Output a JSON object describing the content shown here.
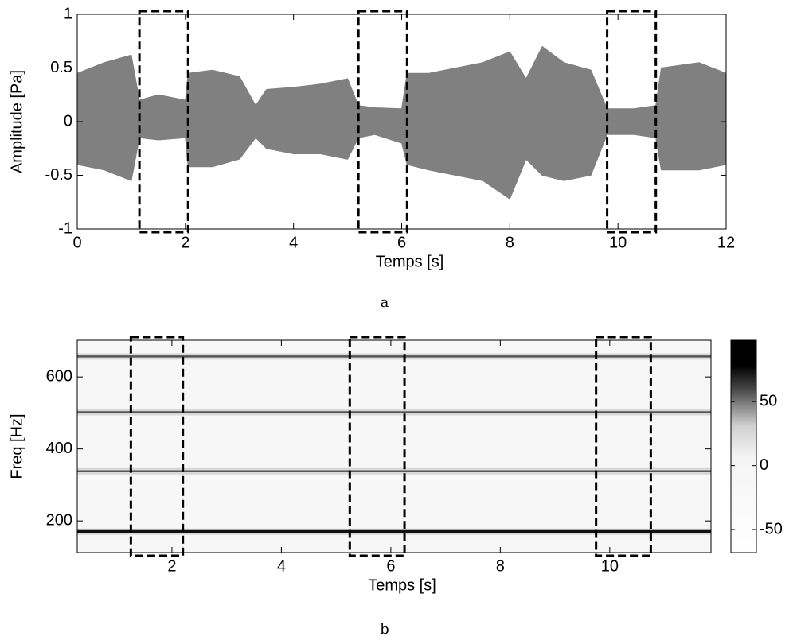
{
  "chart_data": [
    {
      "type": "waveform",
      "xlabel": "Temps [s]",
      "ylabel": "Amplitude [Pa]",
      "caption": "a",
      "color": "#808080",
      "x": [
        0,
        0.5,
        1.0,
        1.15,
        1.5,
        2.0,
        2.05,
        2.5,
        3.0,
        3.3,
        3.5,
        4.0,
        4.5,
        5.0,
        5.2,
        5.5,
        6.0,
        6.1,
        6.5,
        7.0,
        7.5,
        8.0,
        8.3,
        8.6,
        9.0,
        9.5,
        9.8,
        10.3,
        10.7,
        10.8,
        11.5,
        12
      ],
      "upper": [
        0.45,
        0.55,
        0.62,
        0.2,
        0.25,
        0.2,
        0.45,
        0.48,
        0.42,
        0.15,
        0.3,
        0.32,
        0.35,
        0.4,
        0.15,
        0.13,
        0.12,
        0.45,
        0.45,
        0.5,
        0.55,
        0.65,
        0.4,
        0.7,
        0.55,
        0.48,
        0.12,
        0.12,
        0.15,
        0.5,
        0.55,
        0.45
      ],
      "lower": [
        -0.4,
        -0.45,
        -0.55,
        -0.15,
        -0.17,
        -0.15,
        -0.42,
        -0.42,
        -0.35,
        -0.15,
        -0.25,
        -0.3,
        -0.3,
        -0.35,
        -0.15,
        -0.12,
        -0.2,
        -0.4,
        -0.45,
        -0.5,
        -0.55,
        -0.72,
        -0.35,
        -0.5,
        -0.55,
        -0.5,
        -0.12,
        -0.12,
        -0.15,
        -0.45,
        -0.45,
        -0.4
      ],
      "highlights": [
        [
          1.15,
          2.05
        ],
        [
          5.2,
          6.1
        ],
        [
          9.8,
          10.7
        ]
      ],
      "xlim": [
        0,
        12
      ],
      "xticks": [
        0,
        2,
        4,
        6,
        8,
        10,
        12
      ],
      "ylim": [
        -1,
        1
      ],
      "yticks": [
        -1,
        -0.5,
        0,
        0.5,
        1
      ]
    },
    {
      "type": "spectrogram",
      "xlabel": "Temps [s]",
      "ylabel": "Freq [Hz]",
      "caption": "b",
      "harmonics": [
        170,
        338,
        502,
        657
      ],
      "highlights": [
        [
          1.25,
          2.2
        ],
        [
          5.25,
          6.25
        ],
        [
          9.75,
          10.75
        ]
      ],
      "xlim": [
        0.27,
        11.85
      ],
      "xticks": [
        2,
        4,
        6,
        8,
        10
      ],
      "ylim": [
        112,
        702
      ],
      "yticks": [
        200,
        400,
        600
      ],
      "clim": [
        -68,
        98
      ],
      "cticks": [
        -50,
        0,
        50
      ]
    }
  ]
}
